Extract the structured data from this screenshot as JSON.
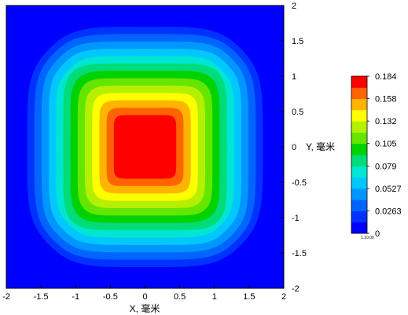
{
  "chart_data": {
    "type": "heatmap",
    "xlabel": "X, 毫米",
    "ylabel": "Y, 毫米",
    "xlim": [
      -2,
      2
    ],
    "ylim": [
      -2,
      2
    ],
    "x_ticks": [
      "-2",
      "-1.5",
      "-1",
      "-0.5",
      "0",
      "0.5",
      "1",
      "1.5",
      "2"
    ],
    "y_ticks": [
      "-2",
      "-1.5",
      "-1",
      "-0.5",
      "0",
      "0.5",
      "1",
      "1.5",
      "2"
    ],
    "field": {
      "shape": "rounded-square",
      "center": [
        0,
        0
      ],
      "max_value": 0.184,
      "plateau_half_width": 0.45,
      "outer_half_width": 1.7
    },
    "colorbar": {
      "min": 0,
      "max": 0.184,
      "levels": 14,
      "labels": [
        "0.184",
        "0.158",
        "0.132",
        "0.105",
        "0.079",
        "0.0527",
        "0.0263",
        "0"
      ],
      "note": "1.10.00",
      "colors": [
        "#0000ff",
        "#0032ff",
        "#0064ff",
        "#0096ff",
        "#00c8ff",
        "#00e6d2",
        "#00dc78",
        "#00d200",
        "#64e600",
        "#b4f000",
        "#ffff00",
        "#ffb400",
        "#ff6400",
        "#ff0000"
      ]
    }
  }
}
